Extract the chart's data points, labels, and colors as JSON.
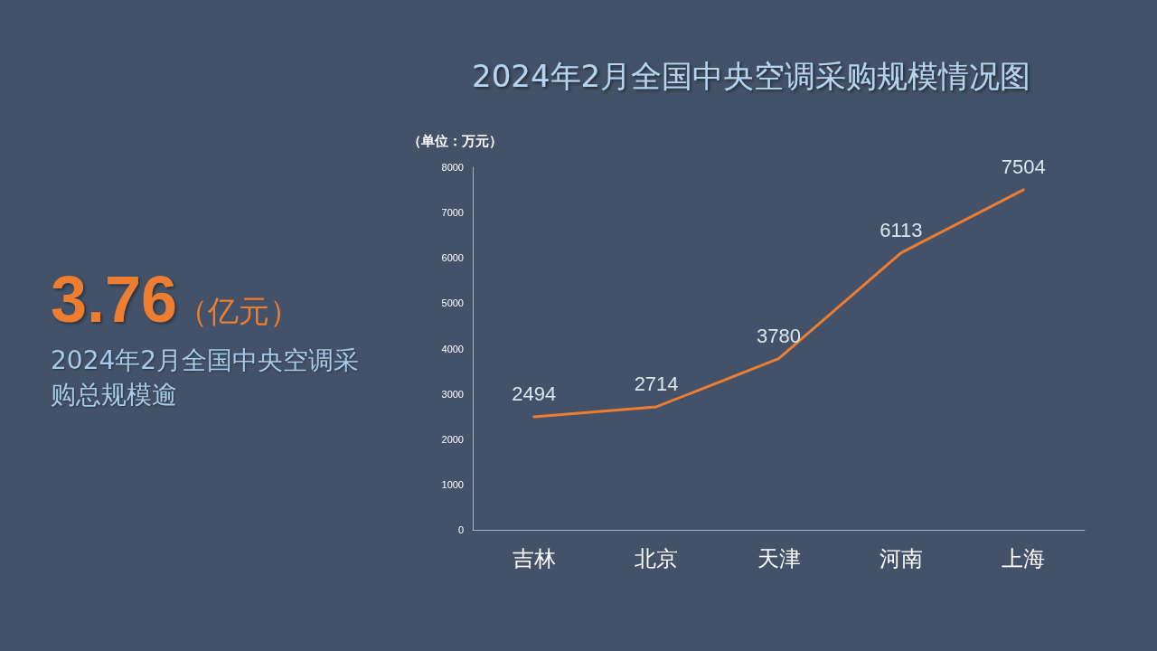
{
  "chart_data": {
    "type": "line",
    "title": "2024年2月全国中央空调采购规模情况图",
    "ylabel": "（单位：万元）",
    "categories": [
      "吉林",
      "北京",
      "天津",
      "河南",
      "上海"
    ],
    "series": [
      {
        "color": "#ed7d31",
        "values": [
          2494,
          2714,
          3780,
          6113,
          7504
        ]
      }
    ],
    "ylim": [
      0,
      8000
    ],
    "yticks": [
      0,
      1000,
      2000,
      3000,
      4000,
      5000,
      6000,
      7000,
      8000
    ],
    "data_labels": true,
    "grid": false,
    "marker": "none",
    "line_style": "solid",
    "annotations": [
      "3.76",
      "（亿元）",
      "2024年2月全国中央空调采购总规模逾"
    ]
  }
}
